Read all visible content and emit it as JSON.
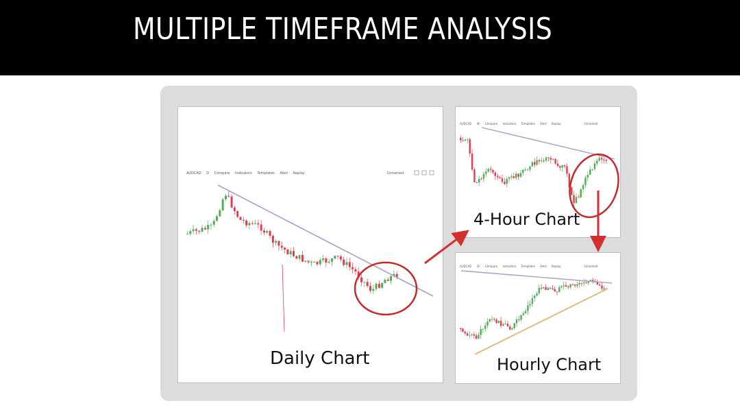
{
  "header": {
    "title": "MULTIPLE TIMEFRAME ANALYSIS"
  },
  "colors": {
    "banner": "#000000",
    "panel": "#dcdcdc",
    "bull": "#4caf50",
    "bear": "#e53950",
    "trendline": "#a99ec6",
    "support": "#d9c07a",
    "circle": "#c62828",
    "arrow": "#d32f2f"
  },
  "charts": {
    "daily": {
      "caption": "Daily Chart",
      "toolbar": {
        "symbol": "AUDCAD",
        "interval": "D",
        "compare": "Compare",
        "indicators": "Indicators",
        "templates": "Templates",
        "alert": "Alert",
        "replay": "Replay",
        "layout": "Unnamed"
      }
    },
    "four_hour": {
      "caption": "4-Hour Chart",
      "toolbar": {
        "symbol": "AUDCAD",
        "interval": "4h",
        "compare": "Compare",
        "indicators": "Indicators",
        "templates": "Templates",
        "alert": "Alert",
        "replay": "Replay",
        "layout": "Unnamed"
      }
    },
    "hourly": {
      "caption": "Hourly Chart",
      "toolbar": {
        "symbol": "AUDCAD",
        "interval": "1h",
        "compare": "Compare",
        "indicators": "Indicators",
        "templates": "Templates",
        "alert": "Alert",
        "replay": "Replay",
        "layout": "Unnamed"
      }
    }
  }
}
